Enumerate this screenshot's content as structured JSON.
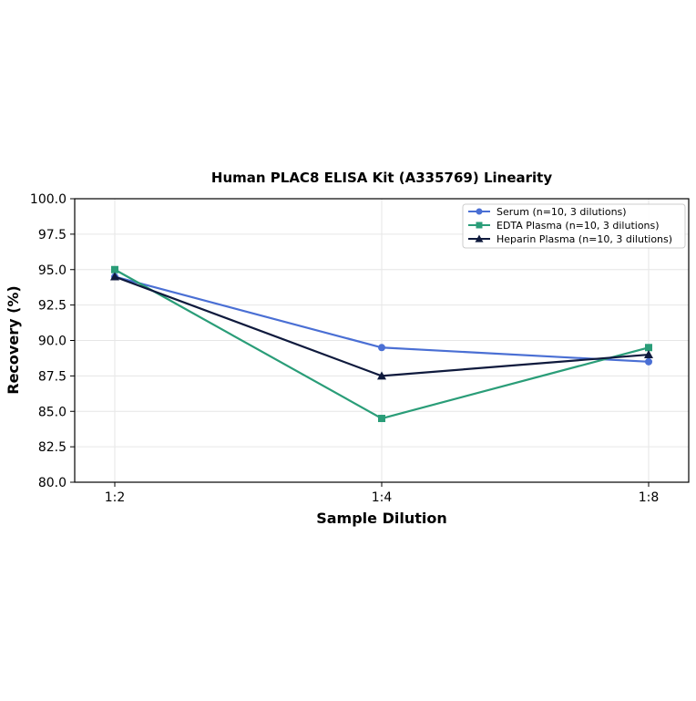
{
  "chart_data": {
    "type": "line",
    "title": "Human PLAC8 ELISA Kit (A335769) Linearity",
    "xlabel": "Sample Dilution",
    "ylabel": "Recovery (%)",
    "categories": [
      "1:2",
      "1:4",
      "1:8"
    ],
    "ylim": [
      80.0,
      100.0
    ],
    "yticks": [
      "80.0",
      "82.5",
      "85.0",
      "87.5",
      "90.0",
      "92.5",
      "95.0",
      "97.5",
      "100.0"
    ],
    "grid": true,
    "legend_position": "top-right",
    "series": [
      {
        "name": "Serum (n=10, 3 dilutions)",
        "values": [
          94.5,
          89.5,
          88.5
        ],
        "color": "#4a6fd4",
        "marker": "circle"
      },
      {
        "name": "EDTA Plasma (n=10, 3 dilutions)",
        "values": [
          95.0,
          84.5,
          89.5
        ],
        "color": "#2a9d78",
        "marker": "square"
      },
      {
        "name": "Heparin Plasma (n=10, 3 dilutions)",
        "values": [
          94.5,
          87.5,
          89.0
        ],
        "color": "#0f1a3d",
        "marker": "triangle"
      }
    ]
  }
}
